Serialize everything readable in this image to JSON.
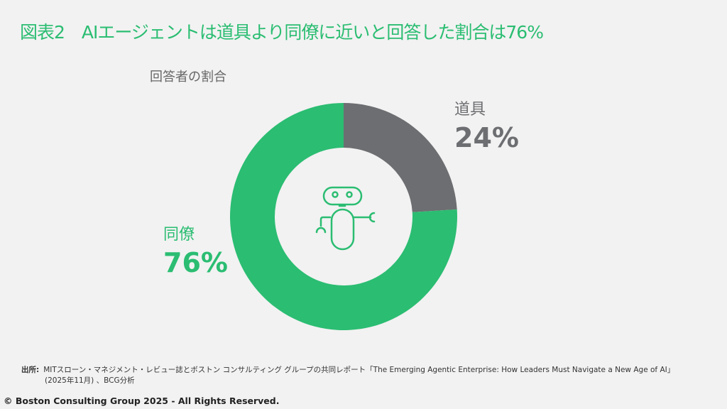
{
  "title": "図表2　AIエージェントは道具より同僚に近いと回答した割合は76%",
  "colors": {
    "accent": "#2bbd72",
    "tool": "#6d6e71",
    "background": "#f2f2f2"
  },
  "chart_data": {
    "type": "pie",
    "variant": "donut",
    "title": "回答者の割合",
    "categories": [
      "道具",
      "同僚"
    ],
    "values": [
      24,
      76
    ],
    "labels": [
      "24%",
      "76%"
    ],
    "colors": [
      "#6d6e71",
      "#2bbd72"
    ],
    "center_icon": "robot-icon"
  },
  "source": {
    "label": "出所:",
    "line1": "MITスローン・マネジメント・レビュー誌とボストン コンサルティング グループの共同レポート「The Emerging Agentic Enterprise: How Leaders Must Navigate a New Age of AI」",
    "line2": "(2025年11月) 、BCG分析"
  },
  "copyright": "© Boston Consulting Group 2025 - All Rights Reserved."
}
